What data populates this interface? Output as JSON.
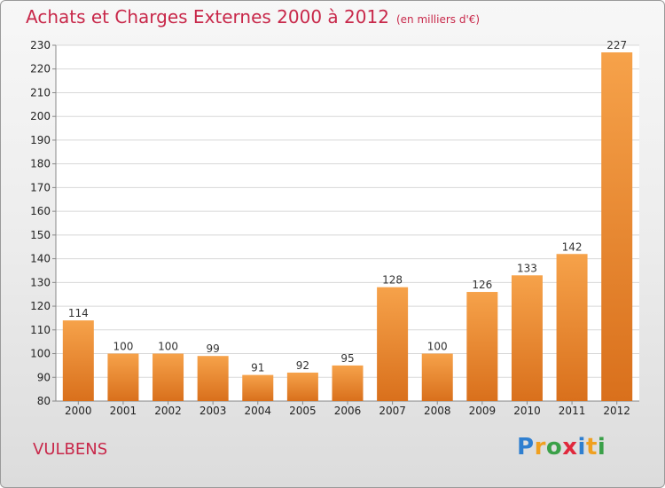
{
  "title": "Achats et Charges Externes 2000 à 2012",
  "unit": "(en milliers d'€)",
  "commune": "VULBENS",
  "logo": {
    "letters": [
      "P",
      "r",
      "o",
      "x",
      "i",
      "t",
      "i"
    ],
    "colors": [
      "#2f7fd0",
      "#f0a020",
      "#3aa048",
      "#e0283c",
      "#2f7fd0",
      "#f0a020",
      "#3aa048"
    ]
  },
  "colors": {
    "title": "#c8284a",
    "bar_top": "#f6a24a",
    "bar_bottom": "#d9701c",
    "grid": "#d8d8d8"
  },
  "chart_data": {
    "type": "bar",
    "title": "Achats et Charges Externes 2000 à 2012",
    "subtitle": "(en milliers d'€)",
    "categories": [
      "2000",
      "2001",
      "2002",
      "2003",
      "2004",
      "2005",
      "2006",
      "2007",
      "2008",
      "2009",
      "2010",
      "2011",
      "2012"
    ],
    "values": [
      114,
      100,
      100,
      99,
      91,
      92,
      95,
      128,
      100,
      126,
      133,
      142,
      227
    ],
    "data_labels": [
      "114",
      "100",
      "100",
      "99",
      "91",
      "92",
      "95",
      "128",
      "100",
      "126",
      "133",
      "142",
      "227"
    ],
    "ylim": [
      80,
      230
    ],
    "yticks": [
      80,
      90,
      100,
      110,
      120,
      130,
      140,
      150,
      160,
      170,
      180,
      190,
      200,
      210,
      220,
      230
    ],
    "grid": true,
    "legend": "none"
  }
}
